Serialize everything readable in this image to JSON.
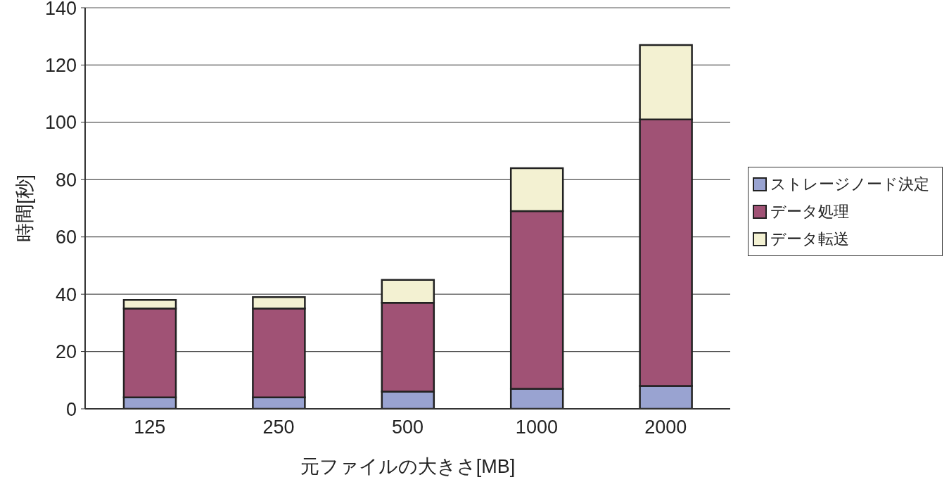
{
  "chart_data": {
    "type": "bar",
    "stacked": true,
    "xlabel": "元ファイルの大きさ[MB]",
    "ylabel": "時間[秒]",
    "categories": [
      "125",
      "250",
      "500",
      "1000",
      "2000"
    ],
    "series": [
      {
        "name": "ストレージノード決定",
        "color": "#99a3d1",
        "values": [
          4,
          4,
          6,
          7,
          8
        ]
      },
      {
        "name": "データ処理",
        "color": "#a05275",
        "values": [
          31,
          31,
          31,
          62,
          93
        ]
      },
      {
        "name": "データ転送",
        "color": "#f3f1d2",
        "values": [
          3,
          4,
          8,
          15,
          26
        ]
      }
    ],
    "ylim": [
      0,
      140
    ],
    "yticks": [
      0,
      20,
      40,
      60,
      80,
      100,
      120,
      140
    ],
    "grid": "y",
    "legend": "right"
  }
}
